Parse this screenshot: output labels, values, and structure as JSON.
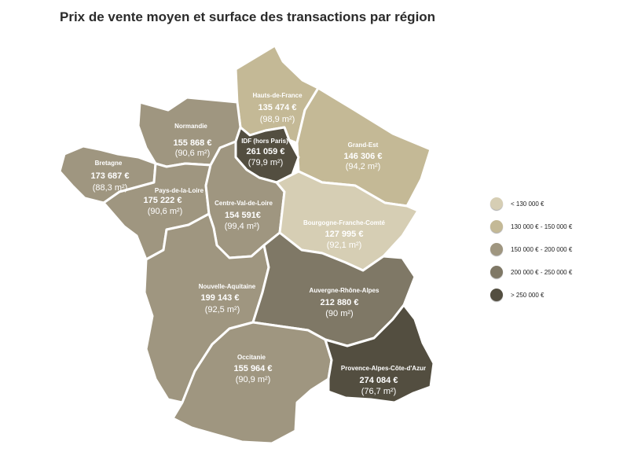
{
  "title": "Prix de vente moyen et surface des transactions par région",
  "colors": {
    "lt130": "#d6ceb4",
    "c130_150": "#c4b996",
    "c150_200": "#9f9680",
    "c200_250": "#7f7866",
    "gt250": "#534e40"
  },
  "legend": [
    {
      "label": "< 130 000 €",
      "color": "#d6ceb4"
    },
    {
      "label": "130 000 € - 150 000 €",
      "color": "#c4b996"
    },
    {
      "label": "150 000 € - 200 000 €",
      "color": "#9f9680"
    },
    {
      "label": "200 000 € - 250 000 €",
      "color": "#7f7866"
    },
    {
      "label": "> 250 000 €",
      "color": "#534e40"
    }
  ],
  "regions": {
    "hauts_de_france": {
      "name": "Hauts-de-France",
      "price": "135 474 €",
      "surface": "(98,9 m²)"
    },
    "normandie": {
      "name": "Normandie",
      "price": "155 868 €",
      "surface": "(90,6 m²)"
    },
    "idf": {
      "name": "IDF (hors Paris)",
      "price": "261 059 €",
      "surface": "(79,9 m²)"
    },
    "grand_est": {
      "name": "Grand-Est",
      "price": "146 306 €",
      "surface": "(94,2 m²)"
    },
    "bretagne": {
      "name": "Bretagne",
      "price": "173 687 €",
      "surface": "(88,3 m²)"
    },
    "pays_de_la_loire": {
      "name": "Pays-de-la-Loire",
      "price": "175 222 €",
      "surface": "(90,6 m²)"
    },
    "centre_val_de_loire": {
      "name": "Centre-Val-de-Loire",
      "price": "154 591€",
      "surface": "(99,4 m²)"
    },
    "bourgogne_franche_comte": {
      "name": "Bourgogne-Franche-Comté",
      "price": "127 995 €",
      "surface": "(92,1 m²)"
    },
    "nouvelle_aquitaine": {
      "name": "Nouvelle-Aquitaine",
      "price": "199 143 €",
      "surface": "(92,5 m²)"
    },
    "auvergne_rhone_alpes": {
      "name": "Auvergne-Rhône-Alpes",
      "price": "212 880 €",
      "surface": "(90 m²)"
    },
    "occitanie": {
      "name": "Occitanie",
      "price": "155 964 €",
      "surface": "(90,9 m²)"
    },
    "paca": {
      "name": "Provence-Alpes-Côte-d'Azur",
      "price": "274 084 €",
      "surface": "(76,7 m²)"
    }
  }
}
